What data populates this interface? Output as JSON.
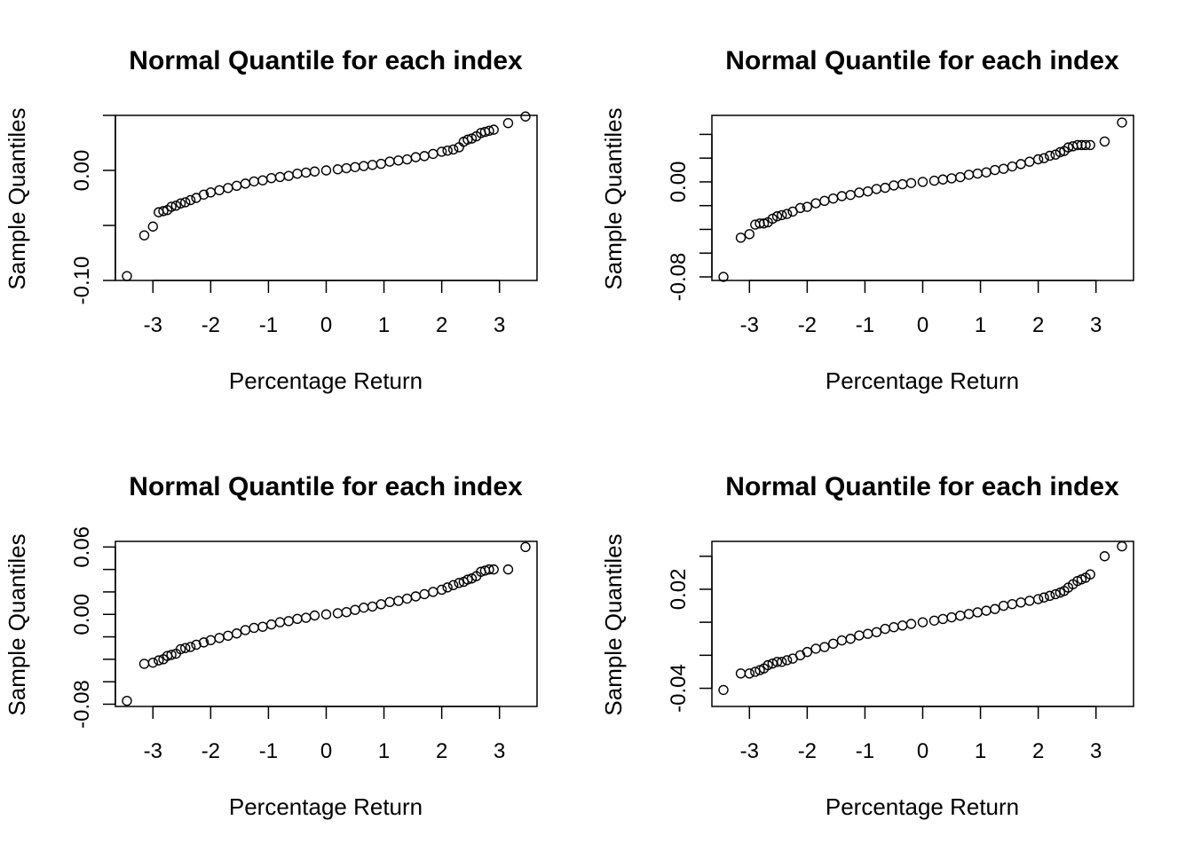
{
  "figure": {
    "layout": "2x2 grid"
  },
  "chart_data": [
    {
      "type": "scatter",
      "title": "Normal Quantile for each index",
      "xlabel": "Percentage Return",
      "ylabel": "Sample Quantiles",
      "xlim": [
        -3.65,
        3.65
      ],
      "ylim": [
        -0.1,
        0.05
      ],
      "x_ticks": [
        -3,
        -2,
        -1,
        0,
        1,
        2,
        3
      ],
      "x_tick_labels": [
        "-3",
        "-2",
        "-1",
        "0",
        "1",
        "2",
        "3"
      ],
      "y_ticks": [
        -0.1,
        -0.05,
        0,
        0.05
      ],
      "y_tick_labels": [
        "-0.10",
        "",
        "0.00",
        ""
      ],
      "grid": false,
      "legend": "none",
      "marker": "open-circle",
      "points": [
        {
          "x": -3.45,
          "y": -0.096
        },
        {
          "x": -3.15,
          "y": -0.059
        },
        {
          "x": -3.0,
          "y": -0.051
        },
        {
          "x": -2.9,
          "y": -0.038
        },
        {
          "x": -2.82,
          "y": -0.037
        },
        {
          "x": -2.75,
          "y": -0.036
        },
        {
          "x": -2.68,
          "y": -0.033
        },
        {
          "x": -2.6,
          "y": -0.032
        },
        {
          "x": -2.52,
          "y": -0.03
        },
        {
          "x": -2.44,
          "y": -0.029
        },
        {
          "x": -2.35,
          "y": -0.027
        },
        {
          "x": -2.25,
          "y": -0.025
        },
        {
          "x": -2.12,
          "y": -0.022
        },
        {
          "x": -2.0,
          "y": -0.02
        },
        {
          "x": -1.85,
          "y": -0.018
        },
        {
          "x": -1.7,
          "y": -0.016
        },
        {
          "x": -1.55,
          "y": -0.014
        },
        {
          "x": -1.4,
          "y": -0.012
        },
        {
          "x": -1.25,
          "y": -0.01
        },
        {
          "x": -1.1,
          "y": -0.009
        },
        {
          "x": -0.95,
          "y": -0.007
        },
        {
          "x": -0.8,
          "y": -0.006
        },
        {
          "x": -0.65,
          "y": -0.005
        },
        {
          "x": -0.5,
          "y": -0.003
        },
        {
          "x": -0.35,
          "y": -0.002
        },
        {
          "x": -0.2,
          "y": -0.001
        },
        {
          "x": 0.0,
          "y": 0.0
        },
        {
          "x": 0.2,
          "y": 0.001
        },
        {
          "x": 0.35,
          "y": 0.002
        },
        {
          "x": 0.5,
          "y": 0.003
        },
        {
          "x": 0.65,
          "y": 0.004
        },
        {
          "x": 0.8,
          "y": 0.005
        },
        {
          "x": 0.95,
          "y": 0.006
        },
        {
          "x": 1.1,
          "y": 0.008
        },
        {
          "x": 1.25,
          "y": 0.009
        },
        {
          "x": 1.4,
          "y": 0.01
        },
        {
          "x": 1.55,
          "y": 0.012
        },
        {
          "x": 1.7,
          "y": 0.013
        },
        {
          "x": 1.85,
          "y": 0.015
        },
        {
          "x": 2.0,
          "y": 0.017
        },
        {
          "x": 2.1,
          "y": 0.018
        },
        {
          "x": 2.2,
          "y": 0.019
        },
        {
          "x": 2.3,
          "y": 0.021
        },
        {
          "x": 2.38,
          "y": 0.026
        },
        {
          "x": 2.45,
          "y": 0.028
        },
        {
          "x": 2.52,
          "y": 0.029
        },
        {
          "x": 2.6,
          "y": 0.031
        },
        {
          "x": 2.68,
          "y": 0.034
        },
        {
          "x": 2.75,
          "y": 0.035
        },
        {
          "x": 2.82,
          "y": 0.036
        },
        {
          "x": 2.9,
          "y": 0.037
        },
        {
          "x": 3.15,
          "y": 0.043
        },
        {
          "x": 3.45,
          "y": 0.049
        }
      ]
    },
    {
      "type": "scatter",
      "title": "Normal Quantile for each index",
      "xlabel": "Percentage Return",
      "ylabel": "Sample Quantiles",
      "xlim": [
        -3.65,
        3.65
      ],
      "ylim": [
        -0.083,
        0.056
      ],
      "x_ticks": [
        -3,
        -2,
        -1,
        0,
        1,
        2,
        3
      ],
      "x_tick_labels": [
        "-3",
        "-2",
        "-1",
        "0",
        "1",
        "2",
        "3"
      ],
      "y_ticks": [
        -0.08,
        -0.06,
        -0.04,
        -0.02,
        0,
        0.02,
        0.04
      ],
      "y_tick_labels": [
        "-0.08",
        "",
        "",
        "",
        "0.00",
        "",
        ""
      ],
      "grid": false,
      "legend": "none",
      "marker": "open-circle",
      "points": [
        {
          "x": -3.45,
          "y": -0.08
        },
        {
          "x": -3.15,
          "y": -0.047
        },
        {
          "x": -3.0,
          "y": -0.044
        },
        {
          "x": -2.9,
          "y": -0.036
        },
        {
          "x": -2.82,
          "y": -0.035
        },
        {
          "x": -2.75,
          "y": -0.035
        },
        {
          "x": -2.68,
          "y": -0.034
        },
        {
          "x": -2.6,
          "y": -0.031
        },
        {
          "x": -2.52,
          "y": -0.029
        },
        {
          "x": -2.44,
          "y": -0.028
        },
        {
          "x": -2.35,
          "y": -0.027
        },
        {
          "x": -2.25,
          "y": -0.025
        },
        {
          "x": -2.12,
          "y": -0.022
        },
        {
          "x": -2.0,
          "y": -0.021
        },
        {
          "x": -1.85,
          "y": -0.018
        },
        {
          "x": -1.7,
          "y": -0.016
        },
        {
          "x": -1.55,
          "y": -0.014
        },
        {
          "x": -1.4,
          "y": -0.012
        },
        {
          "x": -1.25,
          "y": -0.011
        },
        {
          "x": -1.1,
          "y": -0.009
        },
        {
          "x": -0.95,
          "y": -0.008
        },
        {
          "x": -0.8,
          "y": -0.006
        },
        {
          "x": -0.65,
          "y": -0.005
        },
        {
          "x": -0.5,
          "y": -0.003
        },
        {
          "x": -0.35,
          "y": -0.002
        },
        {
          "x": -0.2,
          "y": -0.001
        },
        {
          "x": 0.0,
          "y": 0.0
        },
        {
          "x": 0.2,
          "y": 0.001
        },
        {
          "x": 0.35,
          "y": 0.002
        },
        {
          "x": 0.5,
          "y": 0.003
        },
        {
          "x": 0.65,
          "y": 0.004
        },
        {
          "x": 0.8,
          "y": 0.006
        },
        {
          "x": 0.95,
          "y": 0.007
        },
        {
          "x": 1.1,
          "y": 0.008
        },
        {
          "x": 1.25,
          "y": 0.01
        },
        {
          "x": 1.4,
          "y": 0.011
        },
        {
          "x": 1.55,
          "y": 0.013
        },
        {
          "x": 1.7,
          "y": 0.015
        },
        {
          "x": 1.85,
          "y": 0.017
        },
        {
          "x": 2.0,
          "y": 0.019
        },
        {
          "x": 2.1,
          "y": 0.02
        },
        {
          "x": 2.2,
          "y": 0.022
        },
        {
          "x": 2.3,
          "y": 0.023
        },
        {
          "x": 2.38,
          "y": 0.025
        },
        {
          "x": 2.45,
          "y": 0.026
        },
        {
          "x": 2.52,
          "y": 0.029
        },
        {
          "x": 2.6,
          "y": 0.03
        },
        {
          "x": 2.68,
          "y": 0.031
        },
        {
          "x": 2.75,
          "y": 0.031
        },
        {
          "x": 2.82,
          "y": 0.031
        },
        {
          "x": 2.9,
          "y": 0.031
        },
        {
          "x": 3.15,
          "y": 0.034
        },
        {
          "x": 3.45,
          "y": 0.05
        }
      ]
    },
    {
      "type": "scatter",
      "title": "Normal Quantile for each index",
      "xlabel": "Percentage Return",
      "ylabel": "Sample Quantiles",
      "xlim": [
        -3.65,
        3.65
      ],
      "ylim": [
        -0.082,
        0.065
      ],
      "x_ticks": [
        -3,
        -2,
        -1,
        0,
        1,
        2,
        3
      ],
      "x_tick_labels": [
        "-3",
        "-2",
        "-1",
        "0",
        "1",
        "2",
        "3"
      ],
      "y_ticks": [
        -0.08,
        -0.06,
        -0.04,
        -0.02,
        0,
        0.02,
        0.04,
        0.06
      ],
      "y_tick_labels": [
        "-0.08",
        "",
        "",
        "",
        "0.00",
        "",
        "",
        "0.06"
      ],
      "grid": false,
      "legend": "none",
      "marker": "open-circle",
      "points": [
        {
          "x": -3.45,
          "y": -0.077
        },
        {
          "x": -3.15,
          "y": -0.044
        },
        {
          "x": -3.0,
          "y": -0.043
        },
        {
          "x": -2.9,
          "y": -0.041
        },
        {
          "x": -2.82,
          "y": -0.04
        },
        {
          "x": -2.75,
          "y": -0.037
        },
        {
          "x": -2.68,
          "y": -0.036
        },
        {
          "x": -2.6,
          "y": -0.035
        },
        {
          "x": -2.52,
          "y": -0.031
        },
        {
          "x": -2.44,
          "y": -0.03
        },
        {
          "x": -2.35,
          "y": -0.029
        },
        {
          "x": -2.25,
          "y": -0.027
        },
        {
          "x": -2.12,
          "y": -0.025
        },
        {
          "x": -2.0,
          "y": -0.023
        },
        {
          "x": -1.85,
          "y": -0.021
        },
        {
          "x": -1.7,
          "y": -0.019
        },
        {
          "x": -1.55,
          "y": -0.017
        },
        {
          "x": -1.4,
          "y": -0.014
        },
        {
          "x": -1.25,
          "y": -0.012
        },
        {
          "x": -1.1,
          "y": -0.011
        },
        {
          "x": -0.95,
          "y": -0.009
        },
        {
          "x": -0.8,
          "y": -0.007
        },
        {
          "x": -0.65,
          "y": -0.006
        },
        {
          "x": -0.5,
          "y": -0.004
        },
        {
          "x": -0.35,
          "y": -0.003
        },
        {
          "x": -0.2,
          "y": -0.001
        },
        {
          "x": 0.0,
          "y": 0.0
        },
        {
          "x": 0.2,
          "y": 0.001
        },
        {
          "x": 0.35,
          "y": 0.002
        },
        {
          "x": 0.5,
          "y": 0.004
        },
        {
          "x": 0.65,
          "y": 0.006
        },
        {
          "x": 0.8,
          "y": 0.007
        },
        {
          "x": 0.95,
          "y": 0.009
        },
        {
          "x": 1.1,
          "y": 0.011
        },
        {
          "x": 1.25,
          "y": 0.012
        },
        {
          "x": 1.4,
          "y": 0.014
        },
        {
          "x": 1.55,
          "y": 0.016
        },
        {
          "x": 1.7,
          "y": 0.018
        },
        {
          "x": 1.85,
          "y": 0.02
        },
        {
          "x": 2.0,
          "y": 0.022
        },
        {
          "x": 2.1,
          "y": 0.024
        },
        {
          "x": 2.2,
          "y": 0.026
        },
        {
          "x": 2.3,
          "y": 0.028
        },
        {
          "x": 2.38,
          "y": 0.029
        },
        {
          "x": 2.45,
          "y": 0.031
        },
        {
          "x": 2.52,
          "y": 0.032
        },
        {
          "x": 2.6,
          "y": 0.034
        },
        {
          "x": 2.68,
          "y": 0.038
        },
        {
          "x": 2.75,
          "y": 0.039
        },
        {
          "x": 2.82,
          "y": 0.04
        },
        {
          "x": 2.9,
          "y": 0.04
        },
        {
          "x": 3.15,
          "y": 0.04
        },
        {
          "x": 3.45,
          "y": 0.06
        }
      ]
    },
    {
      "type": "scatter",
      "title": "Normal Quantile for each index",
      "xlabel": "Percentage Return",
      "ylabel": "Sample Quantiles",
      "xlim": [
        -3.65,
        3.65
      ],
      "ylim": [
        -0.051,
        0.049
      ],
      "x_ticks": [
        -3,
        -2,
        -1,
        0,
        1,
        2,
        3
      ],
      "x_tick_labels": [
        "-3",
        "-2",
        "-1",
        "0",
        "1",
        "2",
        "3"
      ],
      "y_ticks": [
        -0.04,
        -0.02,
        0,
        0.02,
        0.04
      ],
      "y_tick_labels": [
        "-0.04",
        "",
        "",
        "0.02",
        ""
      ],
      "grid": false,
      "legend": "none",
      "marker": "open-circle",
      "points": [
        {
          "x": -3.45,
          "y": -0.041
        },
        {
          "x": -3.15,
          "y": -0.031
        },
        {
          "x": -3.0,
          "y": -0.031
        },
        {
          "x": -2.9,
          "y": -0.03
        },
        {
          "x": -2.82,
          "y": -0.029
        },
        {
          "x": -2.75,
          "y": -0.028
        },
        {
          "x": -2.68,
          "y": -0.026
        },
        {
          "x": -2.6,
          "y": -0.025
        },
        {
          "x": -2.52,
          "y": -0.024
        },
        {
          "x": -2.44,
          "y": -0.024
        },
        {
          "x": -2.35,
          "y": -0.023
        },
        {
          "x": -2.25,
          "y": -0.022
        },
        {
          "x": -2.12,
          "y": -0.02
        },
        {
          "x": -2.0,
          "y": -0.018
        },
        {
          "x": -1.85,
          "y": -0.016
        },
        {
          "x": -1.7,
          "y": -0.015
        },
        {
          "x": -1.55,
          "y": -0.013
        },
        {
          "x": -1.4,
          "y": -0.011
        },
        {
          "x": -1.25,
          "y": -0.01
        },
        {
          "x": -1.1,
          "y": -0.008
        },
        {
          "x": -0.95,
          "y": -0.007
        },
        {
          "x": -0.8,
          "y": -0.006
        },
        {
          "x": -0.65,
          "y": -0.004
        },
        {
          "x": -0.5,
          "y": -0.003
        },
        {
          "x": -0.35,
          "y": -0.002
        },
        {
          "x": -0.2,
          "y": -0.001
        },
        {
          "x": 0.0,
          "y": 0.0
        },
        {
          "x": 0.2,
          "y": 0.001
        },
        {
          "x": 0.35,
          "y": 0.002
        },
        {
          "x": 0.5,
          "y": 0.003
        },
        {
          "x": 0.65,
          "y": 0.004
        },
        {
          "x": 0.8,
          "y": 0.005
        },
        {
          "x": 0.95,
          "y": 0.006
        },
        {
          "x": 1.1,
          "y": 0.007
        },
        {
          "x": 1.25,
          "y": 0.008
        },
        {
          "x": 1.4,
          "y": 0.01
        },
        {
          "x": 1.55,
          "y": 0.011
        },
        {
          "x": 1.7,
          "y": 0.012
        },
        {
          "x": 1.85,
          "y": 0.013
        },
        {
          "x": 2.0,
          "y": 0.014
        },
        {
          "x": 2.1,
          "y": 0.015
        },
        {
          "x": 2.2,
          "y": 0.016
        },
        {
          "x": 2.3,
          "y": 0.017
        },
        {
          "x": 2.38,
          "y": 0.018
        },
        {
          "x": 2.45,
          "y": 0.019
        },
        {
          "x": 2.52,
          "y": 0.021
        },
        {
          "x": 2.6,
          "y": 0.023
        },
        {
          "x": 2.68,
          "y": 0.025
        },
        {
          "x": 2.75,
          "y": 0.026
        },
        {
          "x": 2.82,
          "y": 0.027
        },
        {
          "x": 2.9,
          "y": 0.029
        },
        {
          "x": 3.15,
          "y": 0.04
        },
        {
          "x": 3.45,
          "y": 0.046
        }
      ]
    }
  ]
}
